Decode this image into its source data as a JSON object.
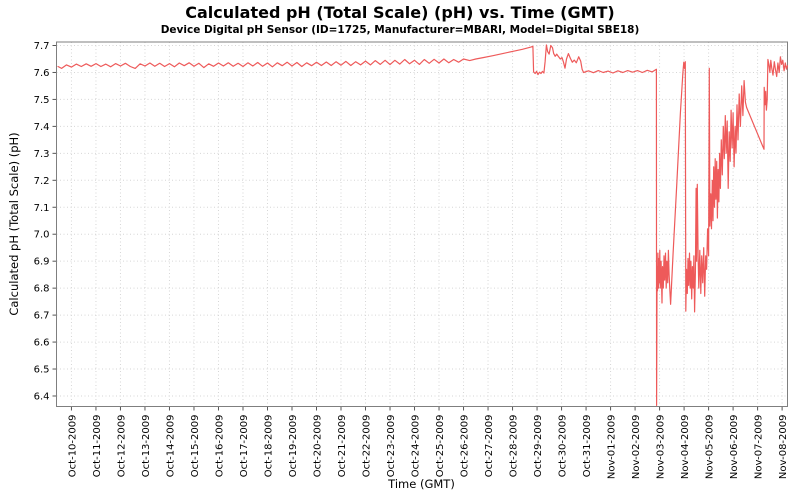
{
  "chart_data": {
    "type": "line",
    "title": "Calculated pH (Total Scale) (pH) vs. Time (GMT)",
    "subtitle": "Device Digital pH Sensor (ID=1725, Manufacturer=MBARI, Model=Digital SBE18)",
    "xlabel": "Time (GMT)",
    "ylabel": "Calculated pH (Total Scale) (pH)",
    "legend": "none",
    "grid": "dotted",
    "x_tick_labels": [
      "Oct-10-2009",
      "Oct-11-2009",
      "Oct-12-2009",
      "Oct-13-2009",
      "Oct-14-2009",
      "Oct-15-2009",
      "Oct-16-2009",
      "Oct-17-2009",
      "Oct-18-2009",
      "Oct-19-2009",
      "Oct-20-2009",
      "Oct-21-2009",
      "Oct-22-2009",
      "Oct-23-2009",
      "Oct-24-2009",
      "Oct-25-2009",
      "Oct-26-2009",
      "Oct-27-2009",
      "Oct-28-2009",
      "Oct-29-2009",
      "Oct-30-2009",
      "Oct-31-2009",
      "Nov-01-2009",
      "Nov-02-2009",
      "Nov-03-2009",
      "Nov-04-2009",
      "Nov-05-2009",
      "Nov-06-2009",
      "Nov-07-2009",
      "Nov-08-2009"
    ],
    "y_ticks": [
      {
        "v": 6.4,
        "label": "6.4"
      },
      {
        "v": 6.5,
        "label": "6.5"
      },
      {
        "v": 6.6,
        "label": "6.6"
      },
      {
        "v": 6.7,
        "label": "6.7"
      },
      {
        "v": 6.8,
        "label": "6.8"
      },
      {
        "v": 6.9,
        "label": "6.9"
      },
      {
        "v": 7.0,
        "label": "7.0"
      },
      {
        "v": 7.1,
        "label": "7.1"
      },
      {
        "v": 7.2,
        "label": "7.2"
      },
      {
        "v": 7.3,
        "label": "7.3"
      },
      {
        "v": 7.4,
        "label": "7.4"
      },
      {
        "v": 7.5,
        "label": "7.5"
      },
      {
        "v": 7.6,
        "label": "7.6"
      },
      {
        "v": 7.7,
        "label": "7.7"
      }
    ],
    "xlim_days": [
      -0.61,
      29.22
    ],
    "ylim": [
      6.361,
      7.713
    ],
    "colors": {
      "line": "#ee5a5a",
      "grid": "#d6d6d6",
      "border": "#7f7f7f",
      "tick": "#555555",
      "text": "#000000"
    },
    "series": [
      {
        "name": "Calculated pH (Total Scale)",
        "points": [
          [
            -0.55,
            7.622
          ],
          [
            -0.4,
            7.615
          ],
          [
            -0.2,
            7.628
          ],
          [
            0.0,
            7.62
          ],
          [
            0.2,
            7.631
          ],
          [
            0.4,
            7.622
          ],
          [
            0.6,
            7.632
          ],
          [
            0.8,
            7.623
          ],
          [
            1.0,
            7.633
          ],
          [
            1.2,
            7.622
          ],
          [
            1.4,
            7.631
          ],
          [
            1.6,
            7.621
          ],
          [
            1.8,
            7.633
          ],
          [
            2.0,
            7.624
          ],
          [
            2.2,
            7.634
          ],
          [
            2.4,
            7.622
          ],
          [
            2.6,
            7.615
          ],
          [
            2.8,
            7.632
          ],
          [
            3.0,
            7.624
          ],
          [
            3.2,
            7.635
          ],
          [
            3.4,
            7.623
          ],
          [
            3.6,
            7.634
          ],
          [
            3.8,
            7.622
          ],
          [
            4.0,
            7.633
          ],
          [
            4.2,
            7.621
          ],
          [
            4.4,
            7.635
          ],
          [
            4.6,
            7.625
          ],
          [
            4.8,
            7.636
          ],
          [
            5.0,
            7.623
          ],
          [
            5.2,
            7.634
          ],
          [
            5.4,
            7.618
          ],
          [
            5.6,
            7.632
          ],
          [
            5.8,
            7.623
          ],
          [
            6.0,
            7.635
          ],
          [
            6.2,
            7.624
          ],
          [
            6.4,
            7.636
          ],
          [
            6.6,
            7.623
          ],
          [
            6.8,
            7.634
          ],
          [
            7.0,
            7.622
          ],
          [
            7.2,
            7.636
          ],
          [
            7.4,
            7.624
          ],
          [
            7.6,
            7.637
          ],
          [
            7.8,
            7.623
          ],
          [
            8.0,
            7.635
          ],
          [
            8.2,
            7.621
          ],
          [
            8.4,
            7.636
          ],
          [
            8.6,
            7.625
          ],
          [
            8.8,
            7.638
          ],
          [
            9.0,
            7.624
          ],
          [
            9.2,
            7.637
          ],
          [
            9.4,
            7.622
          ],
          [
            9.6,
            7.636
          ],
          [
            9.8,
            7.625
          ],
          [
            10.0,
            7.638
          ],
          [
            10.2,
            7.626
          ],
          [
            10.4,
            7.639
          ],
          [
            10.6,
            7.626
          ],
          [
            10.8,
            7.64
          ],
          [
            11.0,
            7.627
          ],
          [
            11.2,
            7.641
          ],
          [
            11.4,
            7.626
          ],
          [
            11.6,
            7.64
          ],
          [
            11.8,
            7.628
          ],
          [
            12.0,
            7.642
          ],
          [
            12.2,
            7.628
          ],
          [
            12.4,
            7.644
          ],
          [
            12.6,
            7.63
          ],
          [
            12.8,
            7.645
          ],
          [
            13.0,
            7.629
          ],
          [
            13.2,
            7.645
          ],
          [
            13.4,
            7.631
          ],
          [
            13.6,
            7.648
          ],
          [
            13.8,
            7.632
          ],
          [
            14.0,
            7.645
          ],
          [
            14.2,
            7.63
          ],
          [
            14.4,
            7.648
          ],
          [
            14.6,
            7.634
          ],
          [
            14.8,
            7.649
          ],
          [
            15.0,
            7.635
          ],
          [
            15.2,
            7.65
          ],
          [
            15.4,
            7.636
          ],
          [
            15.6,
            7.648
          ],
          [
            15.8,
            7.638
          ],
          [
            16.0,
            7.65
          ],
          [
            16.25,
            7.644
          ],
          [
            16.5,
            7.65
          ],
          [
            16.8,
            7.655
          ],
          [
            17.2,
            7.662
          ],
          [
            17.6,
            7.67
          ],
          [
            18.0,
            7.678
          ],
          [
            18.4,
            7.686
          ],
          [
            18.75,
            7.694
          ],
          [
            18.83,
            7.697
          ],
          [
            18.86,
            7.602
          ],
          [
            18.92,
            7.596
          ],
          [
            18.98,
            7.604
          ],
          [
            19.04,
            7.592
          ],
          [
            19.1,
            7.601
          ],
          [
            19.16,
            7.596
          ],
          [
            19.22,
            7.604
          ],
          [
            19.28,
            7.598
          ],
          [
            19.33,
            7.64
          ],
          [
            19.38,
            7.702
          ],
          [
            19.43,
            7.678
          ],
          [
            19.49,
            7.668
          ],
          [
            19.56,
            7.7
          ],
          [
            19.63,
            7.692
          ],
          [
            19.68,
            7.67
          ],
          [
            19.74,
            7.66
          ],
          [
            19.8,
            7.668
          ],
          [
            19.88,
            7.658
          ],
          [
            19.95,
            7.65
          ],
          [
            20.02,
            7.655
          ],
          [
            20.08,
            7.638
          ],
          [
            20.14,
            7.616
          ],
          [
            20.2,
            7.65
          ],
          [
            20.28,
            7.67
          ],
          [
            20.36,
            7.652
          ],
          [
            20.44,
            7.638
          ],
          [
            20.52,
            7.646
          ],
          [
            20.6,
            7.636
          ],
          [
            20.7,
            7.658
          ],
          [
            20.78,
            7.642
          ],
          [
            20.84,
            7.612
          ],
          [
            20.9,
            7.6
          ],
          [
            21.1,
            7.606
          ],
          [
            21.3,
            7.599
          ],
          [
            21.5,
            7.607
          ],
          [
            21.7,
            7.6
          ],
          [
            21.9,
            7.605
          ],
          [
            22.1,
            7.598
          ],
          [
            22.3,
            7.606
          ],
          [
            22.5,
            7.6
          ],
          [
            22.7,
            7.607
          ],
          [
            22.9,
            7.601
          ],
          [
            23.1,
            7.607
          ],
          [
            23.3,
            7.6
          ],
          [
            23.5,
            7.608
          ],
          [
            23.7,
            7.602
          ],
          [
            23.87,
            7.612
          ],
          [
            23.88,
            6.365
          ],
          [
            23.9,
            6.88
          ],
          [
            23.915,
            6.79
          ],
          [
            23.93,
            6.93
          ],
          [
            23.95,
            6.8
          ],
          [
            23.97,
            6.91
          ],
          [
            23.99,
            6.82
          ],
          [
            24.01,
            6.94
          ],
          [
            24.03,
            6.8
          ],
          [
            24.06,
            6.9
          ],
          [
            24.08,
            6.83
          ],
          [
            24.1,
            6.745
          ],
          [
            24.12,
            6.88
          ],
          [
            24.15,
            6.8
          ],
          [
            24.18,
            6.92
          ],
          [
            24.21,
            6.83
          ],
          [
            24.24,
            6.93
          ],
          [
            24.27,
            6.8
          ],
          [
            24.3,
            6.9
          ],
          [
            24.33,
            6.82
          ],
          [
            24.36,
            6.94
          ],
          [
            24.39,
            6.85
          ],
          [
            24.42,
            6.79
          ],
          [
            24.45,
            6.74
          ],
          [
            24.55,
            6.93
          ],
          [
            24.7,
            7.18
          ],
          [
            24.85,
            7.45
          ],
          [
            24.95,
            7.6
          ],
          [
            24.99,
            7.638
          ],
          [
            25.02,
            7.615
          ],
          [
            25.05,
            7.64
          ],
          [
            25.07,
            6.715
          ],
          [
            25.1,
            6.87
          ],
          [
            25.13,
            6.78
          ],
          [
            25.16,
            6.91
          ],
          [
            25.19,
            6.81
          ],
          [
            25.22,
            6.93
          ],
          [
            25.25,
            6.8
          ],
          [
            25.28,
            6.9
          ],
          [
            25.31,
            6.76
          ],
          [
            25.34,
            6.88
          ],
          [
            25.37,
            6.8
          ],
          [
            25.4,
            6.92
          ],
          [
            25.43,
            6.712
          ],
          [
            25.46,
            6.86
          ],
          [
            25.49,
            7.17
          ],
          [
            25.51,
            6.9
          ],
          [
            25.54,
            7.185
          ],
          [
            25.57,
            6.92
          ],
          [
            25.6,
            6.8
          ],
          [
            25.64,
            6.94
          ],
          [
            25.68,
            6.78
          ],
          [
            25.72,
            6.92
          ],
          [
            25.76,
            6.82
          ],
          [
            25.8,
            6.95
          ],
          [
            25.84,
            6.77
          ],
          [
            25.88,
            6.92
          ],
          [
            25.92,
            6.87
          ],
          [
            25.96,
            7.02
          ],
          [
            26.0,
            6.92
          ],
          [
            26.03,
            7.615
          ],
          [
            26.055,
            7.03
          ],
          [
            26.09,
            7.15
          ],
          [
            26.12,
            7.02
          ],
          [
            26.15,
            7.2
          ],
          [
            26.18,
            7.05
          ],
          [
            26.21,
            7.25
          ],
          [
            26.24,
            7.1
          ],
          [
            26.27,
            7.28
          ],
          [
            26.3,
            7.13
          ],
          [
            26.33,
            7.27
          ],
          [
            26.36,
            7.06
          ],
          [
            26.39,
            7.24
          ],
          [
            26.42,
            7.12
          ],
          [
            26.45,
            7.3
          ],
          [
            26.48,
            7.17
          ],
          [
            26.52,
            7.35
          ],
          [
            26.56,
            7.22
          ],
          [
            26.6,
            7.4
          ],
          [
            26.64,
            7.28
          ],
          [
            26.68,
            7.44
          ],
          [
            26.72,
            7.3
          ],
          [
            26.76,
            7.42
          ],
          [
            26.8,
            7.17
          ],
          [
            26.84,
            7.38
          ],
          [
            26.88,
            7.27
          ],
          [
            26.92,
            7.46
          ],
          [
            26.96,
            7.32
          ],
          [
            27.0,
            7.45
          ],
          [
            27.04,
            7.25
          ],
          [
            27.08,
            7.4
          ],
          [
            27.12,
            7.3
          ],
          [
            27.16,
            7.48
          ],
          [
            27.2,
            7.35
          ],
          [
            27.25,
            7.52
          ],
          [
            27.3,
            7.4
          ],
          [
            27.35,
            7.55
          ],
          [
            27.4,
            7.44
          ],
          [
            27.45,
            7.57
          ],
          [
            27.5,
            7.49
          ],
          [
            27.55,
            7.47
          ],
          [
            28.26,
            7.315
          ],
          [
            28.27,
            7.545
          ],
          [
            28.3,
            7.48
          ],
          [
            28.33,
            7.53
          ],
          [
            28.36,
            7.46
          ],
          [
            28.39,
            7.5
          ],
          [
            28.42,
            7.648
          ],
          [
            28.46,
            7.63
          ],
          [
            28.5,
            7.6
          ],
          [
            28.54,
            7.645
          ],
          [
            28.58,
            7.615
          ],
          [
            28.63,
            7.59
          ],
          [
            28.68,
            7.64
          ],
          [
            28.73,
            7.61
          ],
          [
            28.78,
            7.585
          ],
          [
            28.83,
            7.635
          ],
          [
            28.88,
            7.6
          ],
          [
            28.93,
            7.658
          ],
          [
            28.98,
            7.63
          ],
          [
            29.03,
            7.645
          ],
          [
            29.08,
            7.606
          ],
          [
            29.13,
            7.635
          ],
          [
            29.18,
            7.612
          ],
          [
            29.22,
            7.625
          ]
        ]
      }
    ]
  }
}
